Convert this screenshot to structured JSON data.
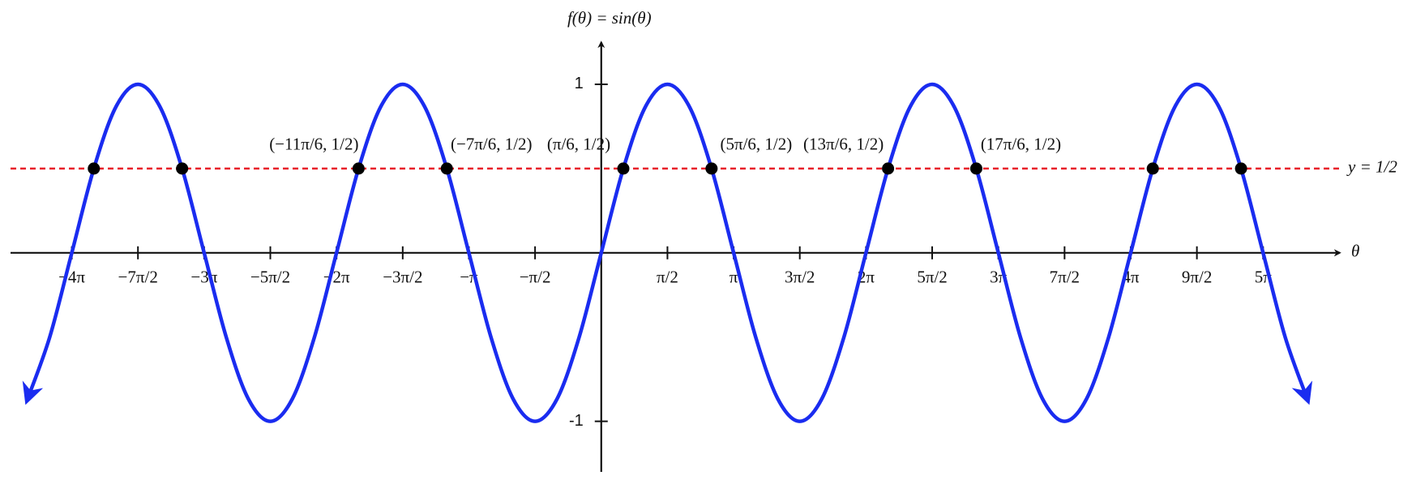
{
  "chart_data": {
    "type": "line",
    "x_label": "θ",
    "y_label": "f(θ) = sin(θ)",
    "xlim": [
      -14.02,
      17.53
    ],
    "ylim": [
      -1.3,
      1.25
    ],
    "xticks": [
      {
        "value": -12.566,
        "label": "−4π"
      },
      {
        "value": -10.996,
        "label": "−7π/2"
      },
      {
        "value": -9.425,
        "label": "−3π"
      },
      {
        "value": -7.854,
        "label": "−5π/2"
      },
      {
        "value": -6.283,
        "label": "−2π"
      },
      {
        "value": -4.712,
        "label": "−3π/2"
      },
      {
        "value": -3.142,
        "label": "−π"
      },
      {
        "value": -1.571,
        "label": "−π/2"
      },
      {
        "value": 1.571,
        "label": "π/2"
      },
      {
        "value": 3.142,
        "label": "π"
      },
      {
        "value": 4.712,
        "label": "3π/2"
      },
      {
        "value": 6.283,
        "label": "2π"
      },
      {
        "value": 7.854,
        "label": "5π/2"
      },
      {
        "value": 9.425,
        "label": "3π"
      },
      {
        "value": 10.996,
        "label": "7π/2"
      },
      {
        "value": 12.566,
        "label": "4π"
      },
      {
        "value": 14.137,
        "label": "9π/2"
      },
      {
        "value": 15.708,
        "label": "5π"
      }
    ],
    "yticks": [
      1,
      -1
    ],
    "series": [
      {
        "color": "#1a2cf0",
        "x": [
          -13.614,
          -13.09,
          -12.566,
          -12.043,
          -11.519,
          -10.996,
          -10.472,
          -9.948,
          -9.425,
          -8.901,
          -8.378,
          -7.854,
          -7.33,
          -6.807,
          -6.283,
          -5.76,
          -5.236,
          -4.712,
          -4.189,
          -3.665,
          -3.142,
          -2.618,
          -2.094,
          -1.571,
          -1.047,
          -0.524,
          0,
          0.524,
          1.047,
          1.571,
          2.094,
          2.618,
          3.142,
          3.665,
          4.189,
          4.712,
          5.236,
          5.76,
          6.283,
          6.807,
          7.33,
          7.854,
          8.378,
          8.901,
          9.425,
          9.948,
          10.472,
          10.996,
          11.519,
          12.043,
          12.566,
          13.09,
          13.614,
          14.137,
          14.661,
          15.184,
          15.708,
          16.232,
          16.755
        ],
        "values": [
          -0.866,
          -0.5,
          0,
          0.5,
          0.866,
          1,
          0.866,
          0.5,
          0,
          -0.5,
          -0.866,
          -1,
          -0.866,
          -0.5,
          0,
          0.5,
          0.866,
          1,
          0.866,
          0.5,
          0,
          -0.5,
          -0.866,
          -1,
          -0.866,
          -0.5,
          0,
          0.5,
          0.866,
          1,
          0.866,
          0.5,
          0,
          -0.5,
          -0.866,
          -1,
          -0.866,
          -0.5,
          0,
          0.5,
          0.866,
          1,
          0.866,
          0.5,
          0,
          -0.5,
          -0.866,
          -1,
          -0.866,
          -0.5,
          0,
          0.5,
          0.866,
          1,
          0.866,
          0.5,
          0,
          -0.5,
          -0.866
        ]
      }
    ],
    "points": {
      "color": "#000000",
      "x": [
        -12.043,
        -9.948,
        -5.76,
        -3.665,
        0.524,
        2.618,
        6.807,
        8.901,
        13.09,
        15.184
      ],
      "values": [
        0.5,
        0.5,
        0.5,
        0.5,
        0.5,
        0.5,
        0.5,
        0.5,
        0.5,
        0.5
      ],
      "value_labels": [
        null,
        null,
        "(−11π/6, 1/2)",
        "(−7π/6, 1/2)",
        "(π/6, 1/2)",
        "(5π/6, 1/2)",
        "(13π/6, 1/2)",
        "(17π/6, 1/2)",
        null,
        null
      ]
    },
    "hline": {
      "value": 0.5,
      "label": "y = 1/2",
      "color": "#e8202a"
    }
  }
}
